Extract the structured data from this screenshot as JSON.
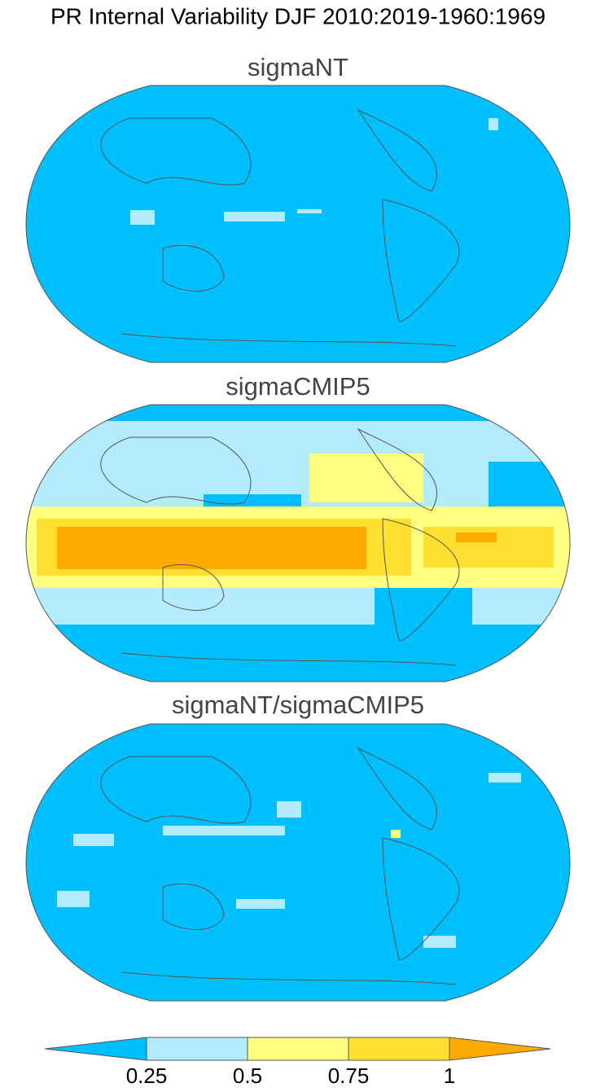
{
  "title": "PR Internal Variability DJF 2010:2019-1960:1969",
  "panels": [
    {
      "title": "sigmaNT"
    },
    {
      "title": "sigmaCMIP5"
    },
    {
      "title": "sigmaNT/sigmaCMIP5"
    }
  ],
  "colorbar": {
    "ticks": [
      0.25,
      0.5,
      0.75,
      1
    ],
    "colors": [
      "#00bfff",
      "#b4ecff",
      "#ffff80",
      "#ffe030",
      "#ffaa00"
    ]
  }
}
